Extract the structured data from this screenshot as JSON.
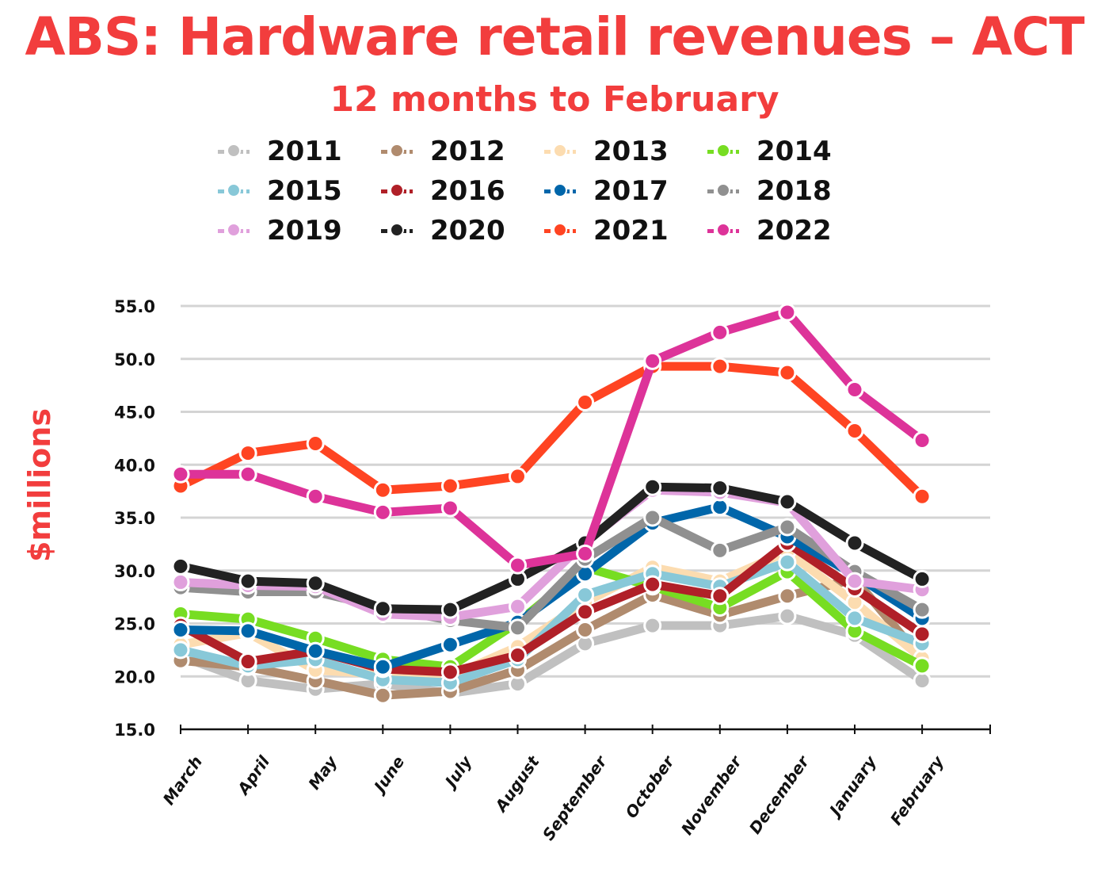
{
  "chart_data": {
    "type": "line",
    "title": "ABS: Hardware retail revenues – ACT",
    "subtitle": "12 months to February",
    "xlabel": "",
    "ylabel": "$millions",
    "ylim": [
      15,
      55
    ],
    "yticks": [
      "15.0",
      "20.0",
      "25.0",
      "30.0",
      "35.0",
      "40.0",
      "45.0",
      "50.0",
      "55.0"
    ],
    "ytick_values": [
      15,
      20,
      25,
      30,
      35,
      40,
      45,
      50,
      55
    ],
    "grid": true,
    "legend_position": "top",
    "categories": [
      "March",
      "April",
      "May",
      "June",
      "July",
      "August",
      "September",
      "October",
      "November",
      "December",
      "January",
      "February"
    ],
    "series": [
      {
        "name": "2011",
        "color": "#c0c0c0",
        "values": [
          21.9,
          19.6,
          18.8,
          19.3,
          18.4,
          19.3,
          23.1,
          24.8,
          24.8,
          25.7,
          23.9,
          19.6
        ]
      },
      {
        "name": "2012",
        "color": "#b08b6e",
        "values": [
          21.5,
          20.9,
          19.6,
          18.2,
          18.6,
          20.6,
          24.4,
          27.7,
          25.8,
          27.6,
          29.2,
          21.6
        ]
      },
      {
        "name": "2013",
        "color": "#fcdcb0",
        "values": [
          23.0,
          24.1,
          20.6,
          20.2,
          20.0,
          22.8,
          27.0,
          30.3,
          29.0,
          31.8,
          27.0,
          21.7
        ]
      },
      {
        "name": "2014",
        "color": "#77dd22",
        "values": [
          25.9,
          25.4,
          23.6,
          21.6,
          20.9,
          25.1,
          30.3,
          28.5,
          26.5,
          29.9,
          24.3,
          21.0
        ]
      },
      {
        "name": "2015",
        "color": "#88c8d8",
        "values": [
          22.5,
          21.0,
          21.6,
          19.7,
          19.4,
          21.6,
          27.7,
          29.7,
          28.5,
          30.8,
          25.5,
          23.1
        ]
      },
      {
        "name": "2016",
        "color": "#b02028",
        "values": [
          24.8,
          21.4,
          22.4,
          20.7,
          20.4,
          22.0,
          26.1,
          28.7,
          27.6,
          32.6,
          28.3,
          24.0
        ]
      },
      {
        "name": "2017",
        "color": "#0066aa",
        "values": [
          24.4,
          24.3,
          22.4,
          20.9,
          23.0,
          25.1,
          29.7,
          34.5,
          36.0,
          33.2,
          29.6,
          25.5
        ]
      },
      {
        "name": "2018",
        "color": "#909090",
        "values": [
          28.4,
          28.0,
          28.0,
          26.5,
          25.3,
          24.6,
          31.1,
          35.0,
          31.9,
          34.1,
          29.9,
          26.3
        ]
      },
      {
        "name": "2019",
        "color": "#e0a0dc",
        "values": [
          28.9,
          28.6,
          28.5,
          25.9,
          25.6,
          26.6,
          32.7,
          37.6,
          37.4,
          36.4,
          29.0,
          28.2
        ]
      },
      {
        "name": "2020",
        "color": "#222222",
        "values": [
          30.4,
          29.0,
          28.8,
          26.4,
          26.3,
          29.2,
          32.6,
          37.9,
          37.8,
          36.5,
          32.6,
          29.2
        ]
      },
      {
        "name": "2021",
        "color": "#ff4422",
        "values": [
          38.0,
          41.1,
          42.0,
          37.6,
          38.0,
          38.9,
          45.9,
          49.3,
          49.3,
          48.7,
          43.2,
          37.0
        ]
      },
      {
        "name": "2022",
        "color": "#dd3399",
        "values": [
          39.1,
          39.1,
          37.0,
          35.5,
          35.9,
          30.5,
          31.6,
          49.8,
          52.5,
          54.4,
          47.1,
          42.3
        ]
      }
    ]
  }
}
